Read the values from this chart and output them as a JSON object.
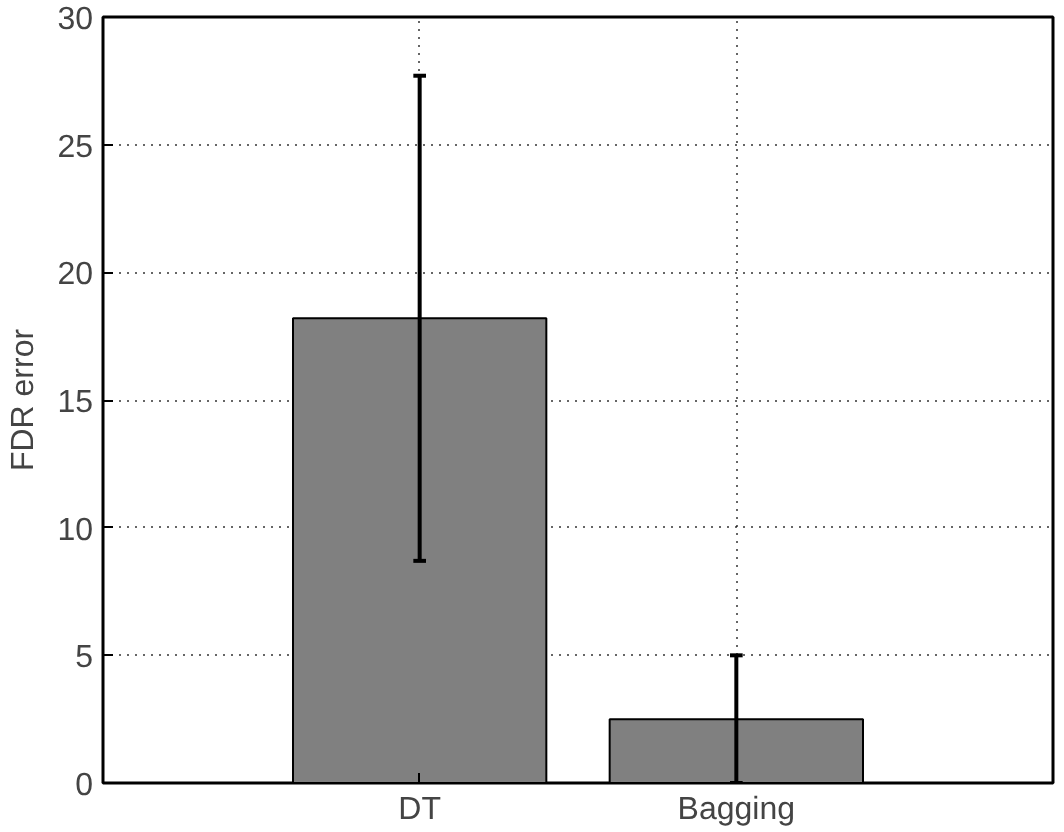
{
  "chart_data": {
    "type": "bar",
    "ylabel": "FDR error",
    "categories": [
      "DT",
      "Bagging"
    ],
    "values": [
      18.2,
      2.5
    ],
    "errors": [
      9.5,
      2.5
    ],
    "color": "#808080",
    "ylim": [
      0,
      30
    ],
    "yticks": [
      0,
      5,
      10,
      15,
      20,
      25,
      30
    ],
    "grid": true
  }
}
